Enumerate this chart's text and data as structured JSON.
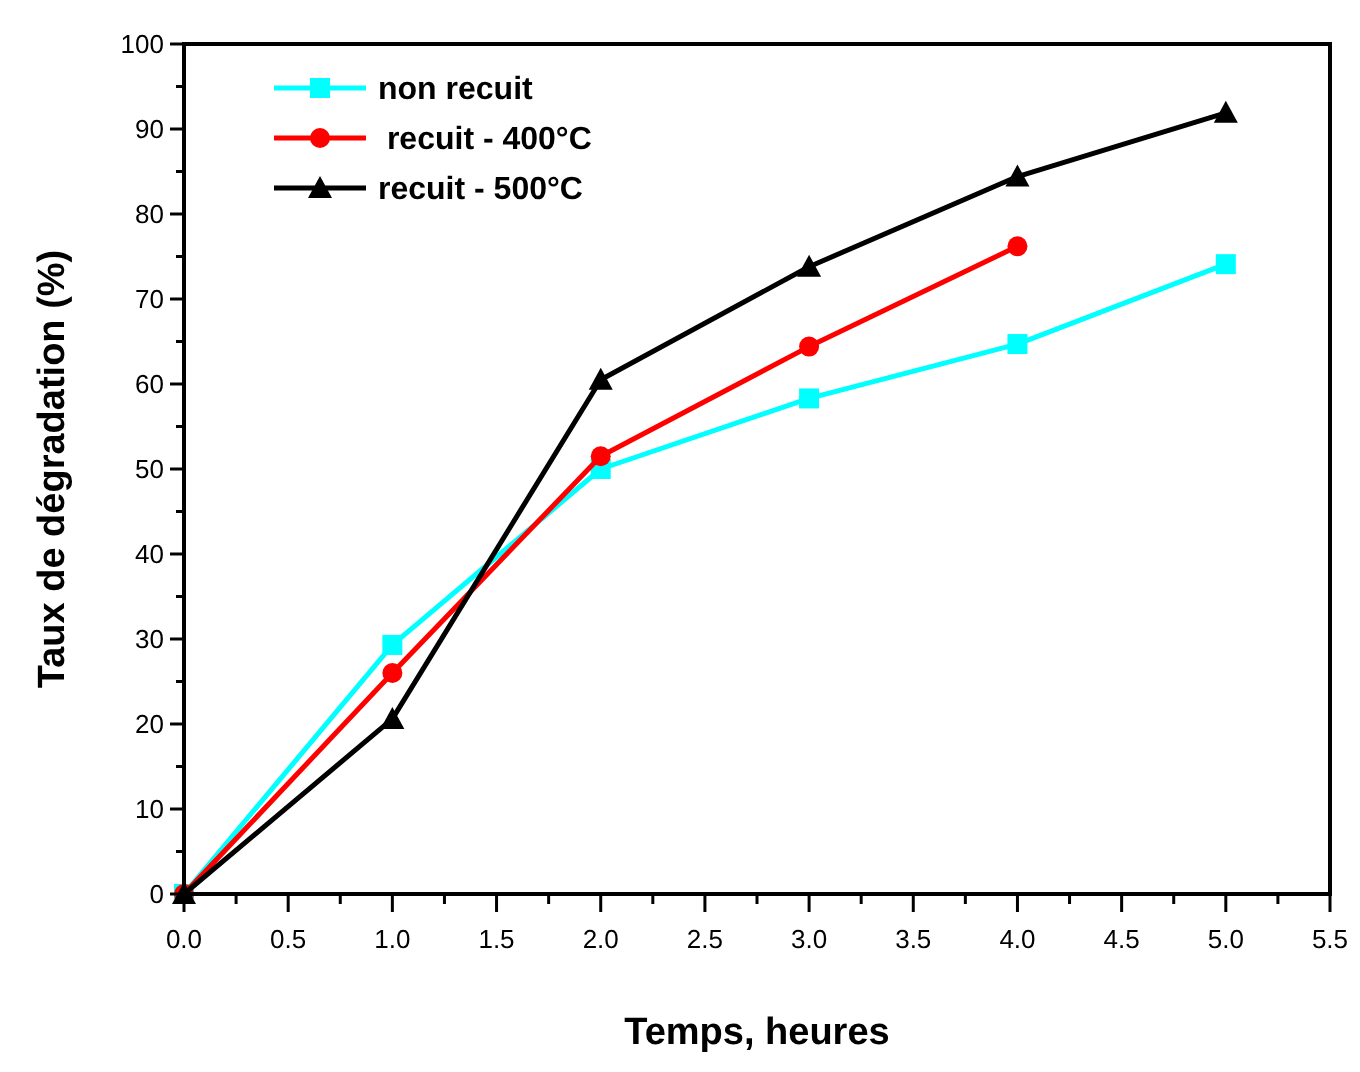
{
  "chart_data": {
    "type": "line",
    "xlabel": "Temps, heures",
    "ylabel": "Taux de dégradation (%)",
    "x": [
      0,
      1,
      2,
      3,
      4,
      5
    ],
    "series": [
      {
        "name": "non recuit",
        "color": "#00ffff",
        "marker": "square",
        "values": [
          0,
          29.3,
          50.0,
          58.3,
          64.7,
          74.1
        ]
      },
      {
        "name": " recuit - 400°C",
        "color": "#ff0000",
        "marker": "circle",
        "x": [
          0,
          1,
          2,
          3,
          4
        ],
        "values": [
          0,
          26.0,
          51.5,
          64.4,
          76.2
        ]
      },
      {
        "name": "recuit - 500°C",
        "color": "#000000",
        "marker": "triangle",
        "values": [
          0,
          20.6,
          60.5,
          73.8,
          84.4,
          91.9
        ]
      }
    ],
    "xlim": [
      0,
      5.5
    ],
    "xticks": [
      {
        "value": 0,
        "label": "0.0"
      },
      {
        "value": 0.25,
        "label": null
      },
      {
        "value": 0.5,
        "label": "0.5"
      },
      {
        "value": 0.75,
        "label": null
      },
      {
        "value": 1,
        "label": "1.0"
      },
      {
        "value": 1.25,
        "label": null
      },
      {
        "value": 1.5,
        "label": "1.5"
      },
      {
        "value": 1.75,
        "label": null
      },
      {
        "value": 2,
        "label": "2.0"
      },
      {
        "value": 2.25,
        "label": null
      },
      {
        "value": 2.5,
        "label": "2.5"
      },
      {
        "value": 2.75,
        "label": null
      },
      {
        "value": 3,
        "label": "3.0"
      },
      {
        "value": 3.25,
        "label": null
      },
      {
        "value": 3.5,
        "label": "3.5"
      },
      {
        "value": 3.75,
        "label": null
      },
      {
        "value": 4,
        "label": "4.0"
      },
      {
        "value": 4.25,
        "label": null
      },
      {
        "value": 4.5,
        "label": "4.5"
      },
      {
        "value": 4.75,
        "label": null
      },
      {
        "value": 5,
        "label": "5.0"
      },
      {
        "value": 5.25,
        "label": null
      },
      {
        "value": 5.5,
        "label": "5.5"
      }
    ],
    "ylim": [
      0,
      100
    ],
    "yticks": [
      0,
      {
        "value": 5,
        "label": null
      },
      10,
      {
        "value": 15,
        "label": null
      },
      20,
      {
        "value": 25,
        "label": null
      },
      30,
      {
        "value": 35,
        "label": null
      },
      40,
      {
        "value": 45,
        "label": null
      },
      50,
      {
        "value": 55,
        "label": null
      },
      60,
      {
        "value": 65,
        "label": null
      },
      70,
      {
        "value": 75,
        "label": null
      },
      80,
      {
        "value": 85,
        "label": null
      },
      90,
      {
        "value": 95,
        "label": null
      },
      100
    ],
    "grid": false,
    "legend": "top left",
    "line_style": "solid"
  }
}
